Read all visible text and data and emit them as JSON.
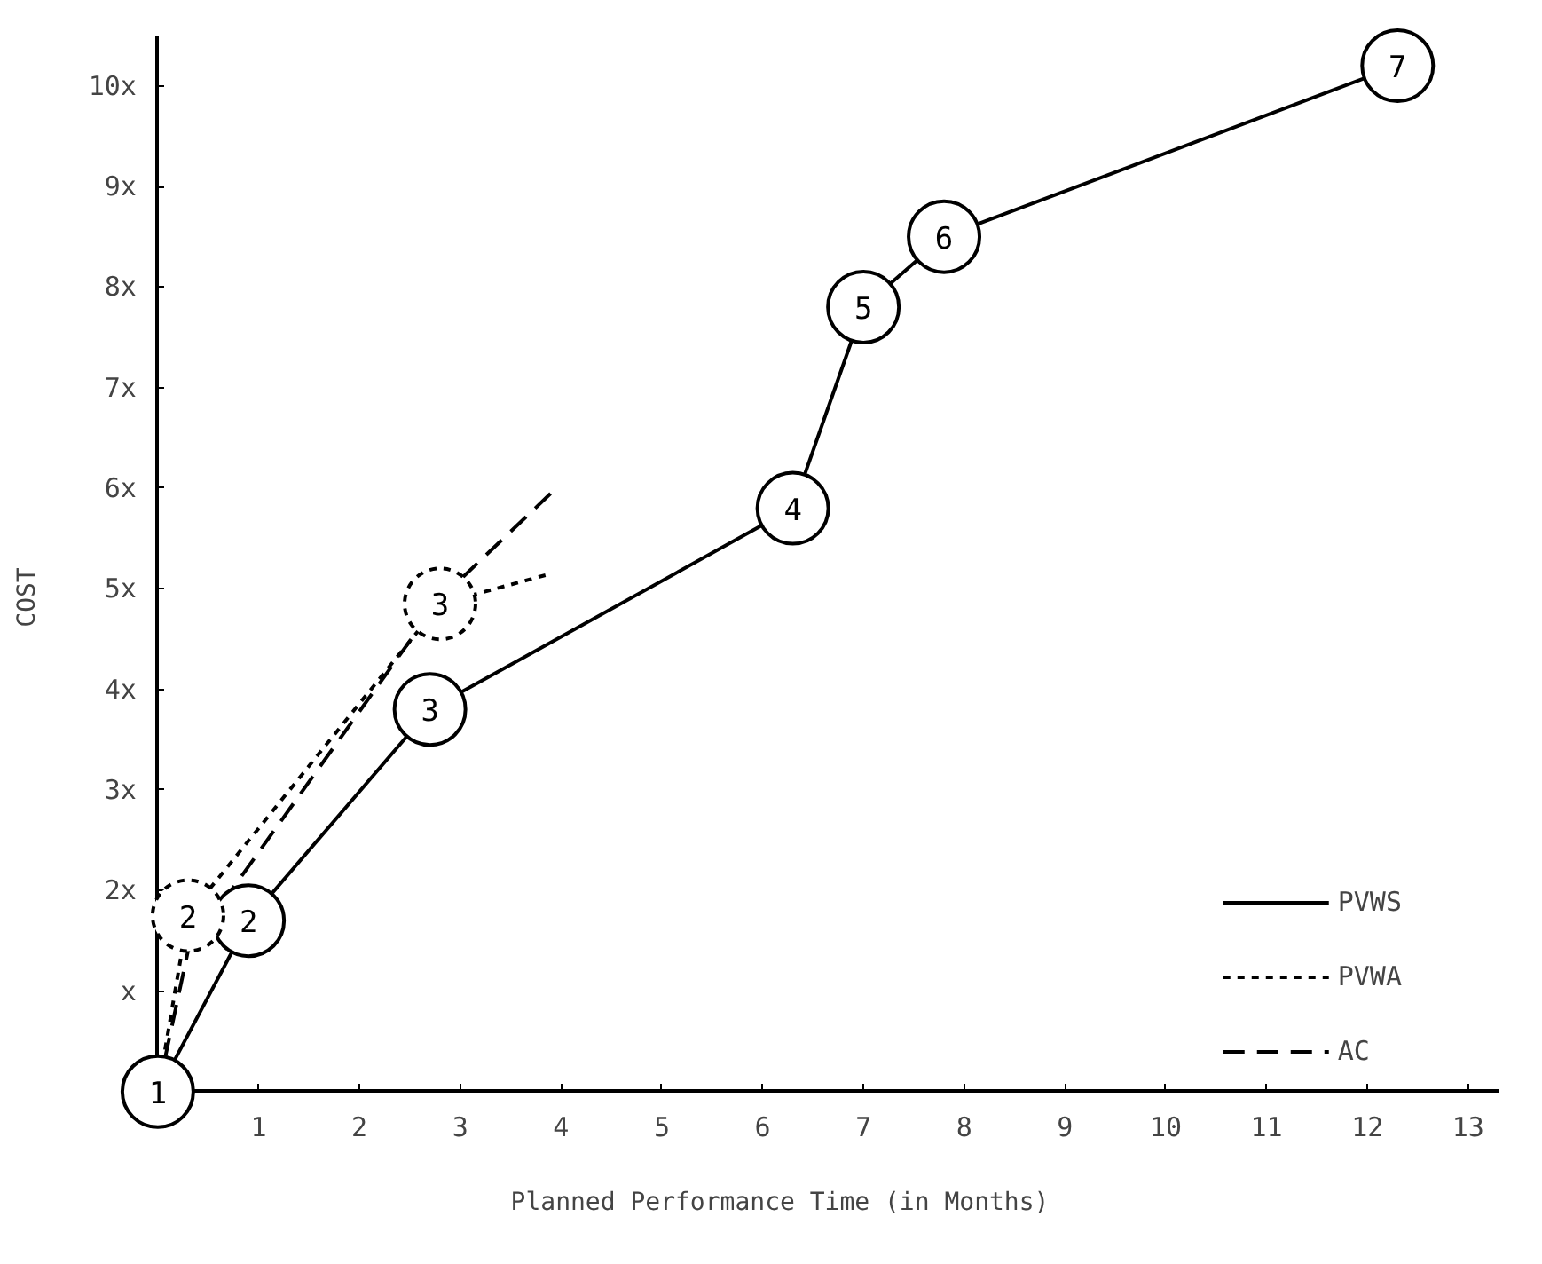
{
  "chart_data": {
    "type": "line",
    "xlabel": "Planned Performance Time (in Months)",
    "ylabel": "COST",
    "xlim": [
      0,
      13.3
    ],
    "ylim": [
      0,
      10.5
    ],
    "xticks": [
      1,
      2,
      3,
      4,
      5,
      6,
      7,
      8,
      9,
      10,
      11,
      12,
      13
    ],
    "yticks": [
      {
        "value": 1,
        "label": "x"
      },
      {
        "value": 2,
        "label": "2x"
      },
      {
        "value": 3,
        "label": "3x"
      },
      {
        "value": 4,
        "label": "4x"
      },
      {
        "value": 5,
        "label": "5x"
      },
      {
        "value": 6,
        "label": "6x"
      },
      {
        "value": 7,
        "label": "7x"
      },
      {
        "value": 8,
        "label": "8x"
      },
      {
        "value": 9,
        "label": "9x"
      },
      {
        "value": 10,
        "label": "10x"
      }
    ],
    "grid": false,
    "legend": "bottom right",
    "series": [
      {
        "name": "PVWS",
        "color": "#000000",
        "line_style": "solid",
        "marker": "circle",
        "x": [
          0,
          0.9,
          2.7,
          6.3,
          7.0,
          7.8,
          12.3
        ],
        "values": [
          0,
          1.7,
          3.8,
          5.8,
          7.8,
          8.5,
          10.2
        ]
      },
      {
        "name": "PVWA",
        "color": "#000000",
        "line_style": "dotted",
        "marker": "circle",
        "x": [
          0,
          0.3,
          2.8,
          3.9
        ],
        "values": [
          0,
          1.75,
          4.85,
          5.15
        ]
      },
      {
        "name": "AC",
        "color": "#000000",
        "line_style": "dashed",
        "marker": "none",
        "x": [
          0,
          0.3,
          2.8,
          3.9
        ],
        "values": [
          0,
          1.4,
          4.9,
          5.95
        ]
      }
    ],
    "annotations": [
      {
        "text": "1",
        "x": 0,
        "y": 0
      },
      {
        "text": "2",
        "x": 0.9,
        "y": 1.7
      },
      {
        "text": "3",
        "x": 2.7,
        "y": 3.8
      },
      {
        "text": "4",
        "x": 6.3,
        "y": 5.8
      },
      {
        "text": "5",
        "x": 7.0,
        "y": 7.8
      },
      {
        "text": "6",
        "x": 7.8,
        "y": 8.5
      },
      {
        "text": "7",
        "x": 12.3,
        "y": 10.2
      },
      {
        "text": "2",
        "x": 0.3,
        "y": 1.75
      },
      {
        "text": "3",
        "x": 2.8,
        "y": 4.85
      }
    ]
  }
}
